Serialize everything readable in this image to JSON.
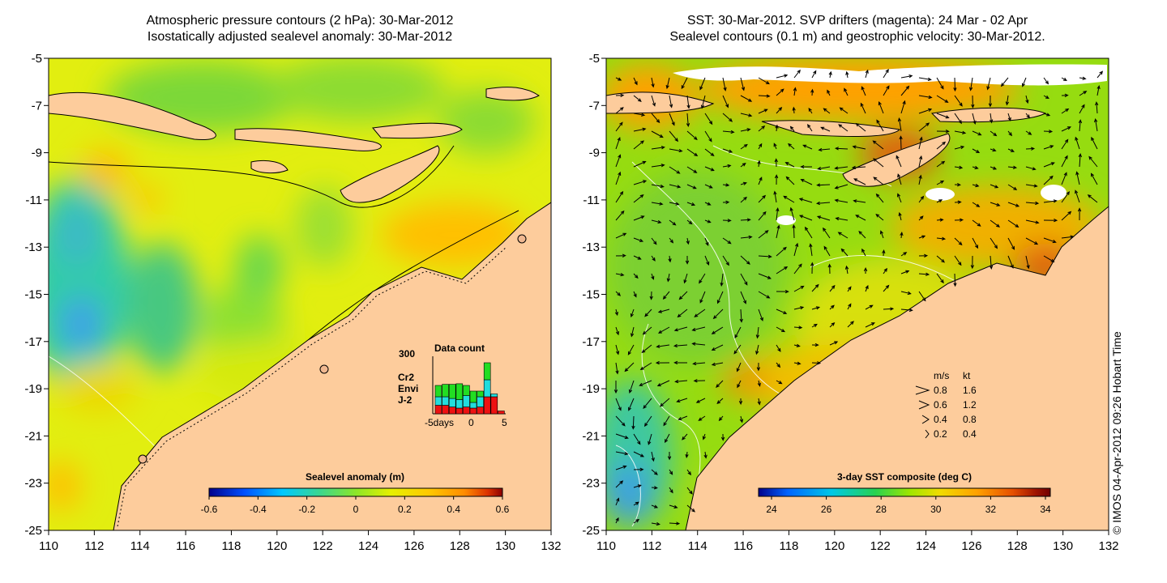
{
  "left_panel": {
    "title_line1": "Atmospheric pressure contours (2 hPa): 30-Mar-2012",
    "title_line2": "Isostatically adjusted sealevel anomaly: 30-Mar-2012",
    "colorbar_title": "Sealevel anomaly (m)",
    "colorbar_ticks": [
      "-0.6",
      "-0.4",
      "-0.2",
      "0",
      "0.2",
      "0.4",
      "0.6"
    ],
    "inset": {
      "title": "Data count",
      "ymax_label": "300",
      "x_labels": [
        "-5days",
        "0",
        "5"
      ],
      "legend": [
        {
          "name": "Cr2",
          "color": "#22dd22"
        },
        {
          "name": "Envi",
          "color": "#22dddd"
        },
        {
          "name": "J-2",
          "color": "#ee1111"
        }
      ],
      "bars": [
        {
          "j2": 0.15,
          "envi": 0.15,
          "cr2": 0.2
        },
        {
          "j2": 0.15,
          "envi": 0.15,
          "cr2": 0.22
        },
        {
          "j2": 0.12,
          "envi": 0.15,
          "cr2": 0.25
        },
        {
          "j2": 0.1,
          "envi": 0.15,
          "cr2": 0.28
        },
        {
          "j2": 0.12,
          "envi": 0.2,
          "cr2": 0.18
        },
        {
          "j2": 0.1,
          "envi": 0.1,
          "cr2": 0.2
        },
        {
          "j2": 0.12,
          "envi": 0.18,
          "cr2": 0.1
        },
        {
          "j2": 0.3,
          "envi": 0.3,
          "cr2": 0.3
        },
        {
          "j2": 0.3,
          "envi": 0.05,
          "cr2": 0.0
        },
        {
          "j2": 0.05,
          "envi": 0.0,
          "cr2": 0.0
        }
      ]
    }
  },
  "right_panel": {
    "title_line1": "SST: 30-Mar-2012. SVP drifters (magenta): 24 Mar - 02 Apr",
    "title_line2": "Sealevel contours (0.1 m) and geostrophic velocity: 30-Mar-2012.",
    "colorbar_title": "3-day SST composite (deg C)",
    "colorbar_ticks": [
      "24",
      "26",
      "28",
      "30",
      "32",
      "34"
    ],
    "velocity_legend": {
      "header_ms": "m/s",
      "header_kt": "kt",
      "rows": [
        {
          "ms": "0.8",
          "kt": "1.6"
        },
        {
          "ms": "0.6",
          "kt": "1.2"
        },
        {
          "ms": "0.4",
          "kt": "0.8"
        },
        {
          "ms": "0.2",
          "kt": "0.4"
        }
      ]
    }
  },
  "axes": {
    "y_labels": [
      "-5",
      "-7",
      "-9",
      "-11",
      "-13",
      "-15",
      "-17",
      "-19",
      "-21",
      "-23",
      "-25"
    ],
    "x_labels": [
      "110",
      "112",
      "114",
      "116",
      "118",
      "120",
      "122",
      "124",
      "126",
      "128",
      "130",
      "132"
    ]
  },
  "copyright": "© IMOS 04-Apr-2012 09:26 Hobart Time",
  "colors": {
    "land": "#fdcc9c",
    "sla_scale": [
      "#00008c",
      "#0050ff",
      "#00c8ff",
      "#3cd78c",
      "#8ce628",
      "#e6f000",
      "#ffc800",
      "#ff8c00",
      "#dc3200",
      "#8c0000"
    ],
    "sst_scale": [
      "#00008c",
      "#0064ff",
      "#00c8e6",
      "#28d250",
      "#a0e600",
      "#f0dc00",
      "#ffa000",
      "#e65000",
      "#a01400",
      "#700000"
    ]
  }
}
